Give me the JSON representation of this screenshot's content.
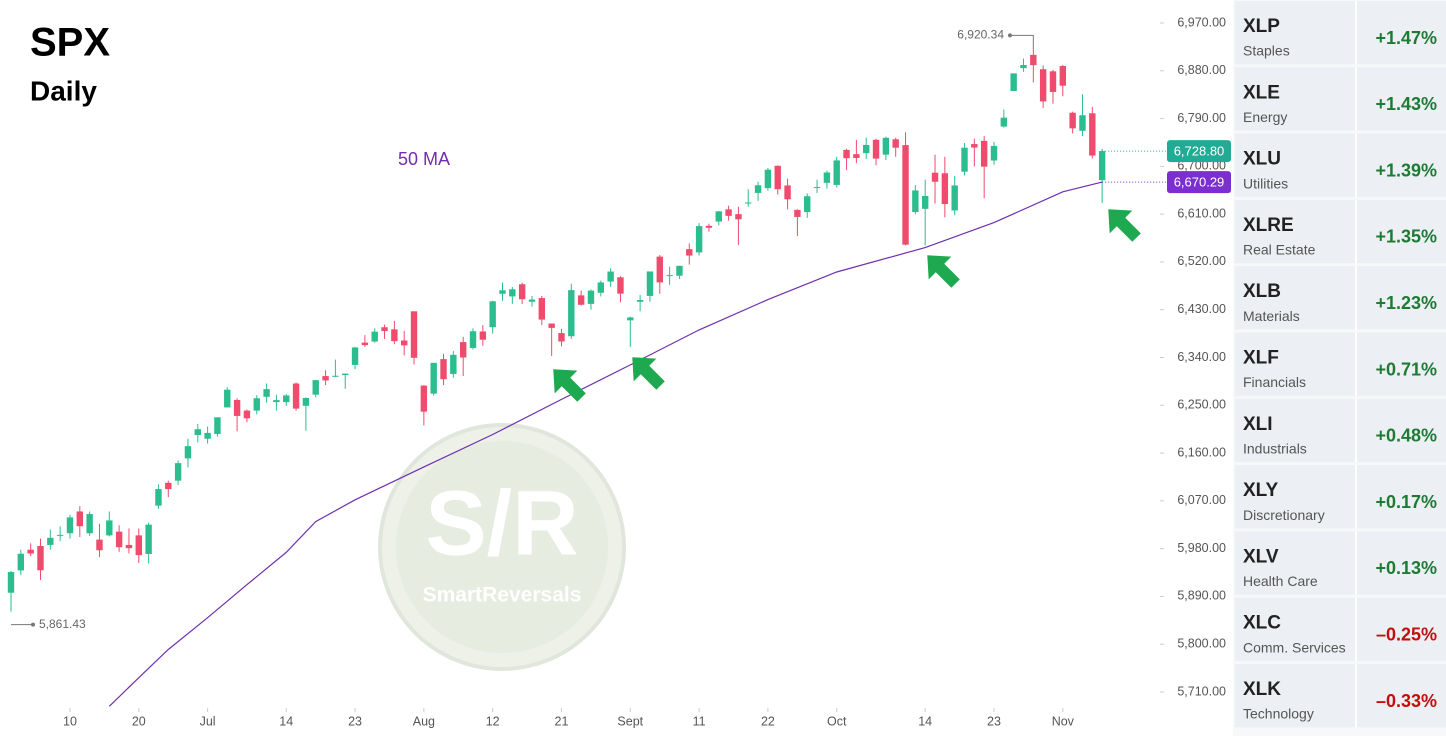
{
  "chart_data": {
    "type": "candlestick",
    "title": "SPX",
    "subtitle": "Daily",
    "ylim": [
      5710,
      6970
    ],
    "yticks": [
      {
        "value": 5710,
        "label": "5,710.00"
      },
      {
        "value": 5800,
        "label": "5,800.00"
      },
      {
        "value": 5890,
        "label": "5,890.00"
      },
      {
        "value": 5980,
        "label": "5,980.00"
      },
      {
        "value": 6070,
        "label": "6,070.00"
      },
      {
        "value": 6160,
        "label": "6,160.00"
      },
      {
        "value": 6250,
        "label": "6,250.00"
      },
      {
        "value": 6340,
        "label": "6,340.00"
      },
      {
        "value": 6430,
        "label": "6,430.00"
      },
      {
        "value": 6520,
        "label": "6,520.00"
      },
      {
        "value": 6610,
        "label": "6,610.00"
      },
      {
        "value": 6700,
        "label": "6,700.00"
      },
      {
        "value": 6790,
        "label": "6,790.00"
      },
      {
        "value": 6880,
        "label": "6,880.00"
      },
      {
        "value": 6970,
        "label": "6,970.00"
      }
    ],
    "xticks": [
      {
        "value": 6,
        "label": "10"
      },
      {
        "value": 13,
        "label": "20"
      },
      {
        "value": 20,
        "label": "Jul"
      },
      {
        "value": 28,
        "label": "14"
      },
      {
        "value": 35,
        "label": "23"
      },
      {
        "value": 42,
        "label": "Aug"
      },
      {
        "value": 49,
        "label": "12"
      },
      {
        "value": 56,
        "label": "21"
      },
      {
        "value": 63,
        "label": "Sept"
      },
      {
        "value": 70,
        "label": "11"
      },
      {
        "value": 77,
        "label": "22"
      },
      {
        "value": 84,
        "label": "Oct"
      },
      {
        "value": 93,
        "label": "14"
      },
      {
        "value": 100,
        "label": "23"
      },
      {
        "value": 107,
        "label": "Nov"
      }
    ],
    "up_color": "#2bbd8e",
    "down_color": "#ef4b6d",
    "series": {
      "open": [
        5897,
        5939,
        5978,
        5985,
        5987,
        6005,
        6009,
        6050,
        6009,
        5997,
        6005,
        6012,
        5987,
        6005,
        5970,
        6061,
        6104,
        6108,
        6150,
        6194,
        6187,
        6196,
        6246,
        6260,
        6240,
        6240,
        6266,
        6256,
        6256,
        6291,
        6249,
        6270,
        6305,
        6305,
        6307,
        6326,
        6368,
        6370,
        6397,
        6393,
        6372,
        6427,
        6287,
        6272,
        6337,
        6309,
        6369,
        6358,
        6389,
        6397,
        6460,
        6455,
        6478,
        6445,
        6452,
        6404,
        6386,
        6380,
        6457,
        6441,
        6462,
        6483,
        6491,
        6410,
        6445,
        6456,
        6530,
        6495,
        6494,
        6544,
        6538,
        6588,
        6596,
        6619,
        6610,
        6630,
        6650,
        6659,
        6701,
        6664,
        6618,
        6614,
        6661,
        6669,
        6665,
        6731,
        6723,
        6725,
        6750,
        6722,
        6751,
        6740,
        6614,
        6620,
        6688,
        6687,
        6617,
        6690,
        6742,
        6748,
        6711,
        6775,
        6842,
        6885,
        6910,
        6883,
        6879,
        6889,
        6801,
        6767,
        6800,
        6674
      ],
      "high": [
        5938,
        5978,
        5990,
        5999,
        6016,
        6022,
        6044,
        6060,
        6050,
        6027,
        6050,
        6024,
        6018,
        6018,
        6029,
        6101,
        6108,
        6146,
        6187,
        6215,
        6210,
        6227,
        6284,
        6263,
        6242,
        6269,
        6291,
        6270,
        6271,
        6293,
        6265,
        6298,
        6316,
        6336,
        6310,
        6360,
        6382,
        6395,
        6402,
        6409,
        6390,
        6427,
        6288,
        6330,
        6347,
        6352,
        6379,
        6395,
        6401,
        6447,
        6481,
        6473,
        6481,
        6456,
        6456,
        6404,
        6394,
        6479,
        6466,
        6468,
        6485,
        6508,
        6493,
        6417,
        6458,
        6502,
        6533,
        6511,
        6513,
        6555,
        6593,
        6592,
        6616,
        6626,
        6624,
        6657,
        6671,
        6697,
        6702,
        6677,
        6619,
        6649,
        6675,
        6692,
        6718,
        6733,
        6750,
        6754,
        6752,
        6756,
        6754,
        6764,
        6665,
        6675,
        6722,
        6718,
        6682,
        6744,
        6752,
        6757,
        6746,
        6807,
        6875,
        6903,
        6920.34,
        6890,
        6882,
        6891,
        6803,
        6836,
        6812,
        6733
      ],
      "low": [
        5861.43,
        5930,
        5966,
        5921,
        5978,
        5994,
        5999,
        6002,
        6004,
        5964,
        6003,
        5974,
        5971,
        5953,
        5952,
        6055,
        6077,
        6100,
        6133,
        6180,
        6178,
        6191,
        6246,
        6201,
        6218,
        6233,
        6255,
        6240,
        6249,
        6240,
        6202,
        6265,
        6288,
        6303,
        6281,
        6318,
        6360,
        6368,
        6375,
        6365,
        6344,
        6327,
        6212,
        6268,
        6288,
        6302,
        6305,
        6355,
        6362,
        6385,
        6447,
        6441,
        6441,
        6436,
        6401,
        6343,
        6361,
        6375,
        6438,
        6430,
        6455,
        6473,
        6444,
        6360,
        6427,
        6445,
        6460,
        6477,
        6488,
        6515,
        6532,
        6577,
        6589,
        6598,
        6552,
        6624,
        6635,
        6654,
        6647,
        6619,
        6569,
        6603,
        6650,
        6658,
        6660,
        6693,
        6706,
        6714,
        6702,
        6712,
        6718,
        6551,
        6610,
        6551,
        6630,
        6604,
        6608,
        6683,
        6700,
        6640,
        6703,
        6773,
        6842,
        6878,
        6858,
        6810,
        6818,
        6832,
        6762,
        6757,
        6715,
        6631
      ],
      "close": [
        5935.94,
        5970.37,
        5970.81,
        5939.3,
        6000.36,
        6005.88,
        6038.81,
        6022.24,
        6045.26,
        5976.97,
        6033.11,
        5982.72,
        5980.87,
        5967.84,
        6025.17,
        6092.18,
        6092.16,
        6141.02,
        6173.07,
        6204.95,
        6198.01,
        6227.42,
        6279.35,
        6229.98,
        6225.52,
        6263.26,
        6280.46,
        6259.75,
        6268.56,
        6243.76,
        6263.7,
        6297.36,
        6296.79,
        6305.6,
        6309.62,
        6358.91,
        6363.35,
        6388.64,
        6389.77,
        6370.86,
        6362.9,
        6339.39,
        6238.01,
        6329.94,
        6299.19,
        6345.06,
        6340,
        6389.45,
        6373.45,
        6445.76,
        6466.58,
        6468.54,
        6449.8,
        6449.15,
        6411.37,
        6395.78,
        6370.17,
        6466.91,
        6439.32,
        6465.94,
        6481.4,
        6501.86,
        6460.26,
        6415.54,
        6448.26,
        6502.08,
        6481.5,
        6495.15,
        6512.61,
        6532.04,
        6587.47,
        6584.29,
        6615.28,
        6606.76,
        6600.35,
        6631.96,
        6664.36,
        6693.75,
        6656.92,
        6637.97,
        6604.72,
        6643.7,
        6661.21,
        6688.46,
        6711.2,
        6715.35,
        6715.79,
        6740.28,
        6714.59,
        6753.72,
        6735.11,
        6552.51,
        6654.72,
        6644.31,
        6671.06,
        6629.07,
        6664.01,
        6735.13,
        6735.35,
        6699.4,
        6738.44,
        6791.69,
        6875.16,
        6890.89,
        6890.59,
        6822.34,
        6840.2,
        6851.97,
        6771.55,
        6796.29,
        6720.32,
        6728.8
      ]
    },
    "moving_average": {
      "name": "50 MA",
      "color": "#6f2fb0",
      "x": [
        10,
        13,
        16,
        20,
        24,
        28,
        31,
        35,
        42,
        49,
        56,
        63,
        70,
        77,
        84,
        93,
        100,
        107,
        111
      ],
      "values": [
        5683,
        5737,
        5790,
        5850,
        5912,
        5973,
        6031,
        6072,
        6134,
        6195,
        6261,
        6326,
        6392,
        6449,
        6501,
        6547,
        6594,
        6652,
        6670.29
      ]
    },
    "price_tags": [
      {
        "value": 6728.8,
        "label": "6,728.80",
        "color": "#22ab94"
      },
      {
        "value": 6670.29,
        "label": "6,670.29",
        "color": "#7b2fd0"
      }
    ],
    "high_label": {
      "value": 6920.34,
      "label": "6,920.34"
    },
    "low_label": {
      "value": 5861.43,
      "label": "5,861.43"
    },
    "watermark": {
      "mark": "S/R",
      "brand": "SmartReversals"
    }
  },
  "sector_table": {
    "rows": [
      {
        "ticker": "XLP",
        "name": "Staples",
        "change": "+1.47%"
      },
      {
        "ticker": "XLE",
        "name": "Energy",
        "change": "+1.43%"
      },
      {
        "ticker": "XLU",
        "name": "Utilities",
        "change": "+1.39%"
      },
      {
        "ticker": "XLRE",
        "name": "Real Estate",
        "change": "+1.35%"
      },
      {
        "ticker": "XLB",
        "name": "Materials",
        "change": "+1.23%"
      },
      {
        "ticker": "XLF",
        "name": "Financials",
        "change": "+0.71%"
      },
      {
        "ticker": "XLI",
        "name": "Industrials",
        "change": "+0.48%"
      },
      {
        "ticker": "XLY",
        "name": "Discretionary",
        "change": "+0.17%"
      },
      {
        "ticker": "XLV",
        "name": "Health Care",
        "change": "+0.13%"
      },
      {
        "ticker": "XLC",
        "name": "Comm. Services",
        "change": "–0.25%"
      },
      {
        "ticker": "XLK",
        "name": "Technology",
        "change": "–0.33%"
      }
    ]
  }
}
